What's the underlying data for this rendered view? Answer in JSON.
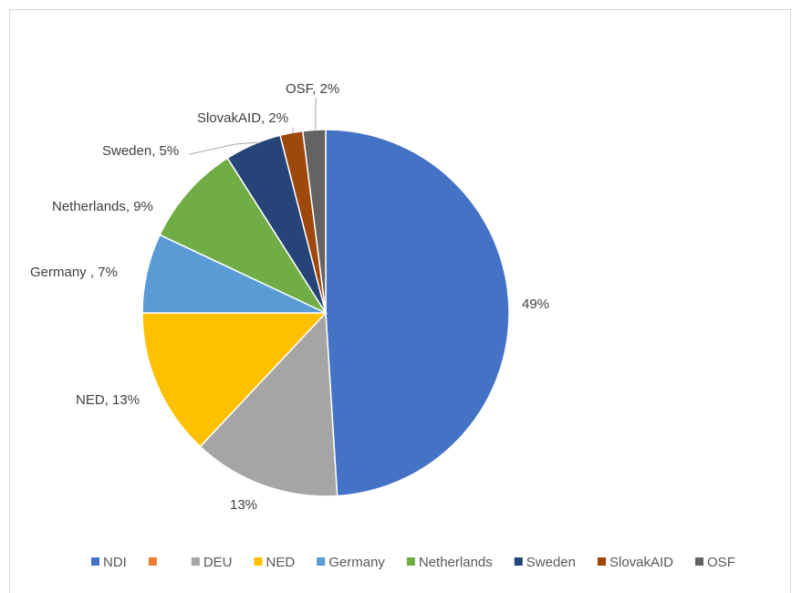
{
  "chart_data": {
    "type": "pie",
    "slices": [
      {
        "name": "NDI",
        "value": 49,
        "label": "49%",
        "color": "#4472c4"
      },
      {
        "name": "",
        "value": 0,
        "label": "",
        "color": "#ed7d31"
      },
      {
        "name": "DEU",
        "value": 13,
        "label": "13%",
        "color": "#a5a5a5"
      },
      {
        "name": "NED",
        "value": 13,
        "label": "NED, 13%",
        "color": "#ffc000"
      },
      {
        "name": "Germany",
        "value": 7,
        "label": "Germany , 7%",
        "color": "#5b9bd5"
      },
      {
        "name": "Netherlands",
        "value": 9,
        "label": "Netherlands, 9%",
        "color": "#70ad47"
      },
      {
        "name": "Sweden",
        "value": 5,
        "label": "Sweden, 5%",
        "color": "#264478"
      },
      {
        "name": "SlovakAID",
        "value": 2,
        "label": "SlovakAID, 2%",
        "color": "#9e480e"
      },
      {
        "name": "OSF",
        "value": 2,
        "label": "OSF, 2%",
        "color": "#636363"
      }
    ],
    "legend_position": "bottom"
  }
}
